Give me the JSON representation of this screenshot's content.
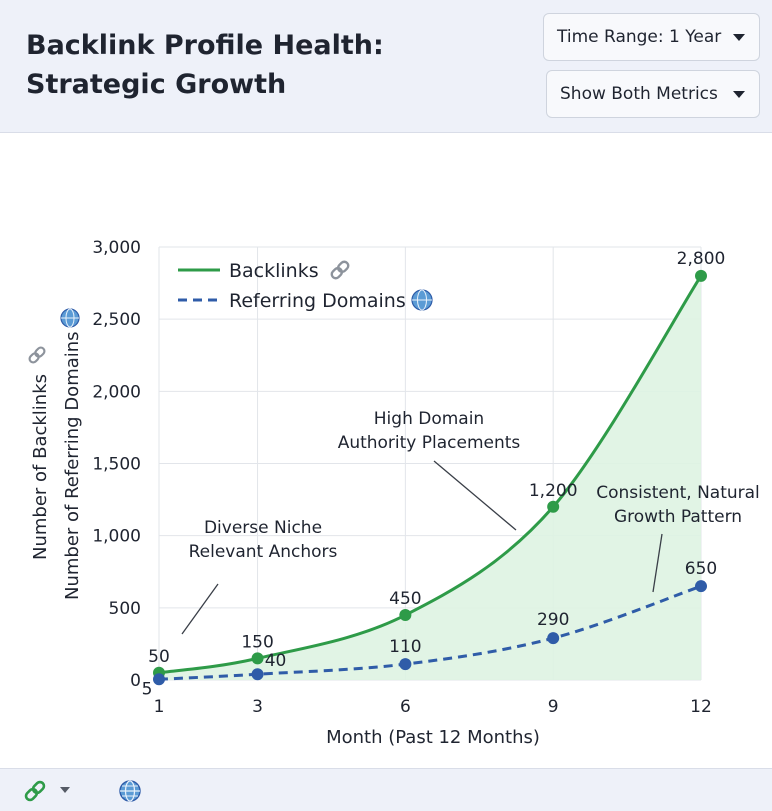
{
  "header": {
    "title": "Backlink Profile Health: Strategic Growth",
    "time_range_label": "Time Range: 1 Year",
    "metric_label": "Show Both Metrics"
  },
  "icons": {
    "link": "link-icon",
    "globe": "globe-icon",
    "dropdown": "chevron-down-icon"
  },
  "colors": {
    "backlinks": "#2e9b48",
    "backlinks_fill": "#def3e2",
    "referring_domains": "#2f5ca8",
    "grid": "#e2e5ea",
    "axis_text": "#1f2430"
  },
  "chart_data": {
    "type": "line",
    "xlabel": "Month (Past 12 Months)",
    "ylabel_primary": "Number of Backlinks",
    "ylabel_secondary": "Number of Referring Domains",
    "x": [
      1,
      3,
      6,
      9,
      12
    ],
    "xticks": [
      "1",
      "3",
      "6",
      "9",
      "12"
    ],
    "xlim": [
      1,
      12
    ],
    "ylim": [
      0,
      3000
    ],
    "yticks": [
      "0",
      "500",
      "1,000",
      "1,500",
      "2,000",
      "2,500",
      "3,000"
    ],
    "grid": true,
    "legend_position": "top-left",
    "series": [
      {
        "name": "Backlinks",
        "style": "solid",
        "filled": true,
        "values": [
          50,
          150,
          450,
          1200,
          2800
        ],
        "labels": [
          "50",
          "150",
          "450",
          "1,200",
          "2,800"
        ]
      },
      {
        "name": "Referring Domains",
        "style": "dashed",
        "filled": false,
        "values": [
          5,
          40,
          110,
          290,
          650
        ],
        "labels": [
          "5",
          "40",
          "110",
          "290",
          "650"
        ]
      }
    ],
    "annotations": [
      {
        "text_lines": [
          "Diverse Niche",
          "Relevant Anchors"
        ]
      },
      {
        "text_lines": [
          "High Domain",
          "Authority Placements"
        ]
      },
      {
        "text_lines": [
          "Consistent, Natural",
          "Growth Pattern"
        ]
      }
    ]
  }
}
